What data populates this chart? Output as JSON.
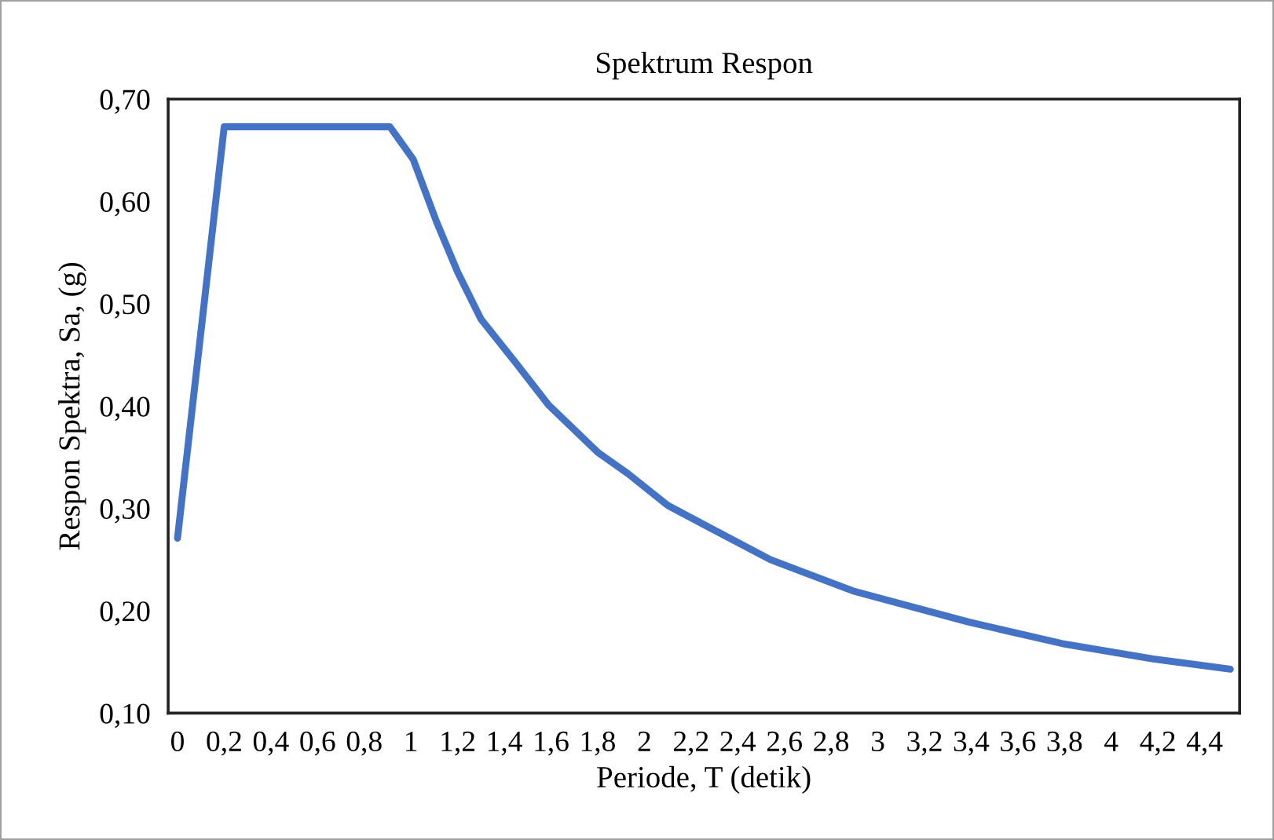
{
  "chart_data": {
    "type": "line",
    "title": "Spektrum Respon",
    "xlabel": "Periode, T (detik)",
    "ylabel": "Respon Spektra, Sa, (g)",
    "x": [
      0,
      0.2,
      0.91,
      1.01,
      1.11,
      1.2,
      1.3,
      1.45,
      1.59,
      1.8,
      1.93,
      2.1,
      2.29,
      2.54,
      2.9,
      3.39,
      3.79,
      4.18,
      4.51
    ],
    "series": [
      {
        "color": "#4472c4",
        "values": [
          0.271,
          0.673,
          0.673,
          0.641,
          0.58,
          0.531,
          0.485,
          0.442,
          0.401,
          0.355,
          0.334,
          0.303,
          0.28,
          0.25,
          0.219,
          0.189,
          0.168,
          0.153,
          0.143
        ]
      }
    ],
    "xlim": [
      -0.04,
      4.55
    ],
    "xticks": [
      0,
      {
        "value": 0.2,
        "label": "0,2"
      },
      {
        "value": 0.4,
        "label": "0,4"
      },
      {
        "value": 0.6,
        "label": "0,6"
      },
      {
        "value": 0.8,
        "label": "0,8"
      },
      1,
      {
        "value": 1.2,
        "label": "1,2"
      },
      {
        "value": 1.4,
        "label": "1,4"
      },
      {
        "value": 1.6,
        "label": "1,6"
      },
      {
        "value": 1.8,
        "label": "1,8"
      },
      2,
      {
        "value": 2.2,
        "label": "2,2"
      },
      {
        "value": 2.4,
        "label": "2,4"
      },
      {
        "value": 2.6,
        "label": "2,6"
      },
      {
        "value": 2.8,
        "label": "2,8"
      },
      3,
      {
        "value": 3.2,
        "label": "3,2"
      },
      {
        "value": 3.4,
        "label": "3,4"
      },
      {
        "value": 3.6,
        "label": "3,6"
      },
      {
        "value": 3.8,
        "label": "3,8"
      },
      4,
      {
        "value": 4.2,
        "label": "4,2"
      },
      {
        "value": 4.4,
        "label": "4,4"
      }
    ],
    "ylim": [
      0.1,
      0.7
    ],
    "yticks": [
      {
        "value": 0.1,
        "label": "0,10"
      },
      {
        "value": 0.2,
        "label": "0,20"
      },
      {
        "value": 0.3,
        "label": "0,30"
      },
      {
        "value": 0.4,
        "label": "0,40"
      },
      {
        "value": 0.5,
        "label": "0,50"
      },
      {
        "value": 0.6,
        "label": "0,60"
      },
      {
        "value": 0.7,
        "label": "0,70"
      }
    ],
    "grid": false,
    "marker": "none",
    "line_style": "solid"
  }
}
